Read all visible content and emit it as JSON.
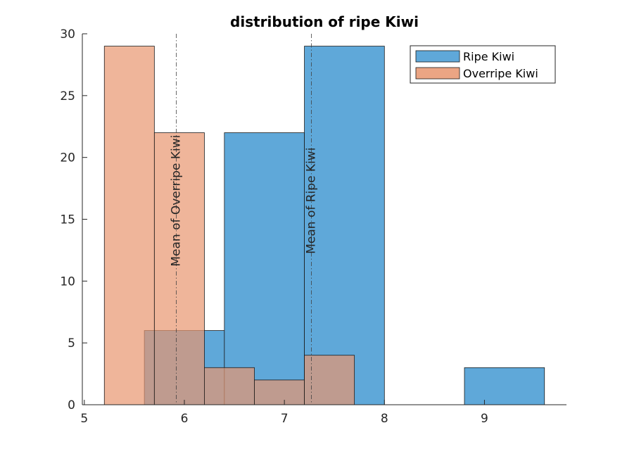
{
  "chart_data": {
    "type": "histogram",
    "title": "distribution of ripe Kiwi",
    "xlabel": "",
    "ylabel": "",
    "xlim": [
      4.98,
      9.82
    ],
    "ylim": [
      0,
      30
    ],
    "xticks": [
      5,
      6,
      7,
      8,
      9
    ],
    "yticks": [
      0,
      5,
      10,
      15,
      20,
      25,
      30
    ],
    "grid": false,
    "legend_position": "top-right",
    "series": [
      {
        "name": "Ripe Kiwi",
        "color": "#5fa8d9",
        "bins": [
          {
            "x0": 5.6,
            "x1": 6.4,
            "count": 6
          },
          {
            "x0": 6.4,
            "x1": 7.2,
            "count": 22
          },
          {
            "x0": 7.2,
            "x1": 8.0,
            "count": 29
          },
          {
            "x0": 8.0,
            "x1": 8.8,
            "count": 0
          },
          {
            "x0": 8.8,
            "x1": 9.6,
            "count": 3
          }
        ]
      },
      {
        "name": "Overripe Kiwi",
        "color": "#e8956f",
        "bins": [
          {
            "x0": 5.2,
            "x1": 5.7,
            "count": 29
          },
          {
            "x0": 5.7,
            "x1": 6.2,
            "count": 22
          },
          {
            "x0": 6.2,
            "x1": 6.7,
            "count": 3
          },
          {
            "x0": 6.7,
            "x1": 7.2,
            "count": 2
          },
          {
            "x0": 7.2,
            "x1": 7.7,
            "count": 4
          }
        ]
      }
    ],
    "annotations": [
      {
        "type": "vline",
        "x": 5.92,
        "label": "Mean of Overripe Kiwi",
        "label_y": 16.5
      },
      {
        "type": "vline",
        "x": 7.27,
        "label": "Mean of Ripe Kiwi",
        "label_y": 16.5
      }
    ]
  }
}
